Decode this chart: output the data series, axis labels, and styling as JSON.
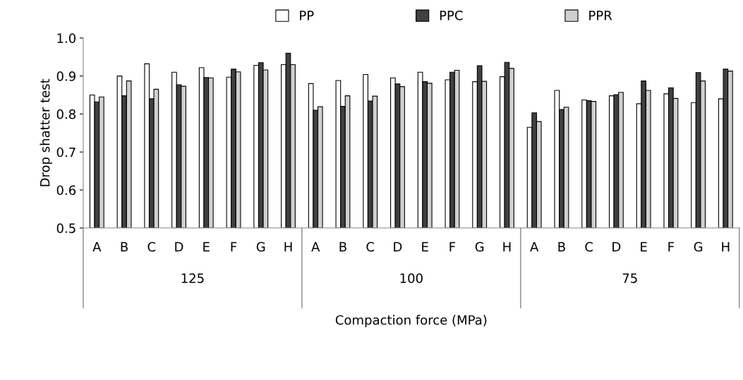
{
  "chart_data": {
    "type": "bar",
    "xlabel": "Compaction force (MPa)",
    "ylabel": "Drop shatter test",
    "categories": [
      "A",
      "B",
      "C",
      "D",
      "E",
      "F",
      "G",
      "H",
      "A",
      "B",
      "C",
      "D",
      "E",
      "F",
      "G",
      "H",
      "A",
      "B",
      "C",
      "D",
      "E",
      "F",
      "G",
      "H"
    ],
    "annotations": [
      "125",
      "100",
      "75"
    ],
    "series": [
      {
        "name": "PP",
        "color": "#ffffff",
        "values": [
          0.85,
          0.9,
          0.932,
          0.91,
          0.922,
          0.897,
          0.928,
          0.93,
          0.88,
          0.888,
          0.904,
          0.895,
          0.91,
          0.89,
          0.885,
          0.898,
          0.765,
          0.862,
          0.837,
          0.848,
          0.827,
          0.853,
          0.83,
          0.84
        ]
      },
      {
        "name": "PPC",
        "color": "#404040",
        "values": [
          0.832,
          0.848,
          0.84,
          0.877,
          0.896,
          0.918,
          0.935,
          0.96,
          0.81,
          0.82,
          0.834,
          0.879,
          0.885,
          0.91,
          0.927,
          0.936,
          0.803,
          0.812,
          0.835,
          0.851,
          0.887,
          0.869,
          0.909,
          0.918
        ]
      },
      {
        "name": "PPR",
        "color": "#d0d0d0",
        "values": [
          0.845,
          0.887,
          0.865,
          0.873,
          0.895,
          0.911,
          0.916,
          0.93,
          0.819,
          0.848,
          0.847,
          0.872,
          0.881,
          0.915,
          0.886,
          0.92,
          0.78,
          0.818,
          0.833,
          0.857,
          0.862,
          0.841,
          0.887,
          0.913
        ]
      }
    ],
    "ylim": [
      0.5,
      1.0
    ],
    "yticks": [
      {
        "value": 0.5,
        "label": "0.5"
      },
      {
        "value": 0.6,
        "label": "0.6"
      },
      {
        "value": 0.7,
        "label": "0.7"
      },
      {
        "value": 0.8,
        "label": "0.8"
      },
      {
        "value": 0.9,
        "label": "0.9"
      },
      {
        "value": 1.0,
        "label": "1.0"
      }
    ],
    "grid": false,
    "legend": "top"
  }
}
